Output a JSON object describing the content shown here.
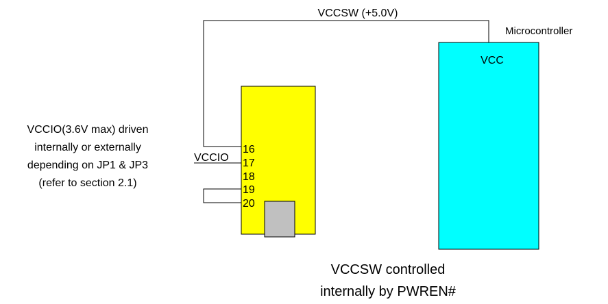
{
  "wires": {
    "vccsw_label": "VCCSW (+5.0V)",
    "vccio_label": "VCCIO"
  },
  "microcontroller": {
    "title": "Microcontroller",
    "pin_label": "VCC",
    "fill_color": "#00ffff"
  },
  "module": {
    "fill_color": "#ffff00",
    "chip_color": "#c0c0c0",
    "pins": [
      "16",
      "17",
      "18",
      "19",
      "20"
    ]
  },
  "notes": {
    "left": [
      "VCCIO(3.6V max) driven",
      "internally or externally",
      "depending on JP1 & JP3",
      "(refer to section 2.1)"
    ],
    "bottom": [
      "VCCSW controlled",
      "internally by PWREN#"
    ]
  }
}
